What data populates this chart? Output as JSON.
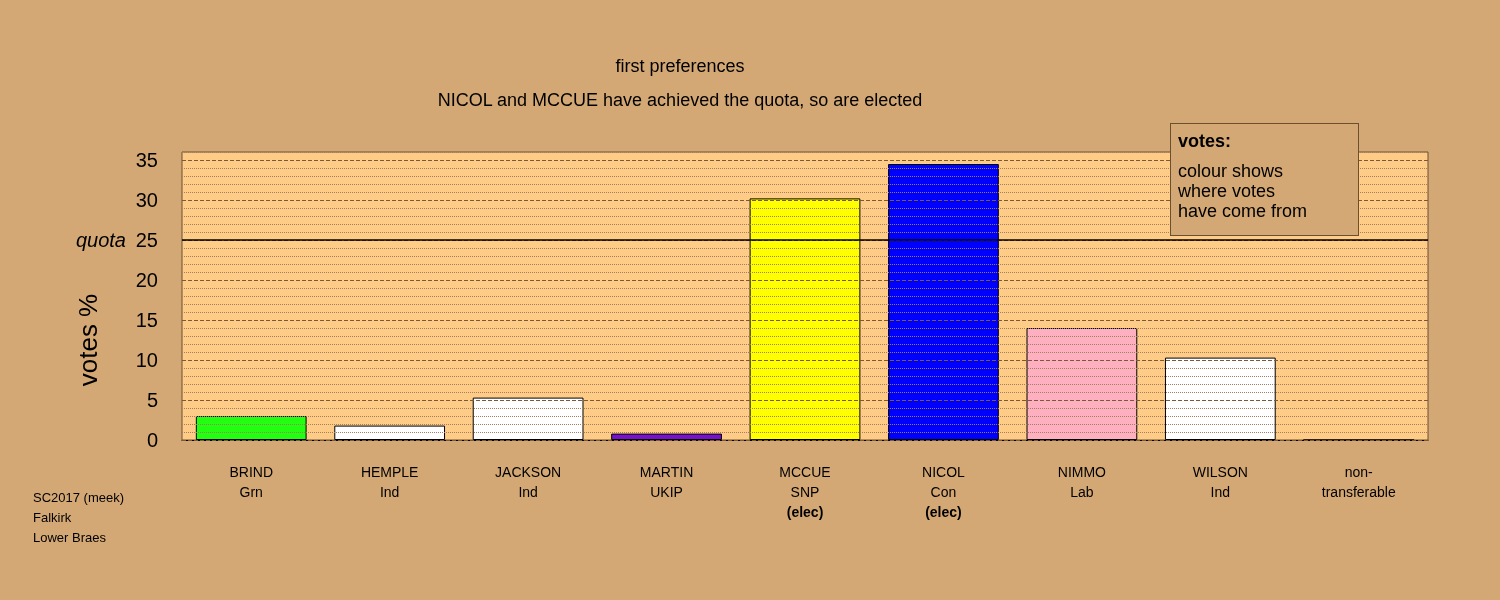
{
  "chart_data": {
    "type": "bar",
    "title": "first preferences",
    "subtitle": "NICOL and MCCUE have achieved the quota, so are elected",
    "ylabel": "votes %",
    "categories": [
      "BRIND\nGrn",
      "HEMPLE\nInd",
      "JACKSON\nInd",
      "MARTIN\nUKIP",
      "MCCUE\nSNP\n(elec)",
      "NICOL\nCon\n(elec)",
      "NIMMO\nLab",
      "WILSON\nInd",
      "non-\ntransferable"
    ],
    "values": [
      3.0,
      1.8,
      5.3,
      0.8,
      30.2,
      34.5,
      14.0,
      10.3,
      0
    ],
    "colors": [
      "#22ff11",
      "#ffffff",
      "#ffffff",
      "#7711cc",
      "#ffff00",
      "#0000ff",
      "#ffb0c0",
      "#ffffff",
      "#000000"
    ],
    "ylim": [
      0,
      36
    ],
    "yticks": [
      0,
      {
        "value": 1,
        "label": null
      },
      {
        "value": 2,
        "label": null
      },
      {
        "value": 3,
        "label": null
      },
      {
        "value": 4,
        "label": null
      },
      5,
      {
        "value": 6,
        "label": null
      },
      {
        "value": 7,
        "label": null
      },
      {
        "value": 8,
        "label": null
      },
      {
        "value": 9,
        "label": null
      },
      10,
      {
        "value": 11,
        "label": null
      },
      {
        "value": 12,
        "label": null
      },
      {
        "value": 13,
        "label": null
      },
      {
        "value": 14,
        "label": null
      },
      15,
      {
        "value": 16,
        "label": null
      },
      {
        "value": 17,
        "label": null
      },
      {
        "value": 18,
        "label": null
      },
      {
        "value": 19,
        "label": null
      },
      20,
      {
        "value": 21,
        "label": null
      },
      {
        "value": 22,
        "label": null
      },
      {
        "value": 23,
        "label": null
      },
      {
        "value": 24,
        "label": null
      },
      25,
      {
        "value": 26,
        "label": null
      },
      {
        "value": 27,
        "label": null
      },
      {
        "value": 28,
        "label": null
      },
      {
        "value": 29,
        "label": null
      },
      30,
      {
        "value": 31,
        "label": null
      },
      {
        "value": 32,
        "label": null
      },
      {
        "value": 33,
        "label": null
      },
      {
        "value": 34,
        "label": null
      },
      35,
      {
        "value": 36,
        "label": null
      }
    ],
    "grid": "y",
    "ref_lines": [
      {
        "axis": "y",
        "value": 25,
        "label": "quota",
        "color": "#000000",
        "line_style": "solid"
      }
    ],
    "annotations": [
      "votes:\ncolour shows\nwhere votes\nhave come from",
      "SC2017 (meek)\nFalkirk\nLower Braes"
    ]
  }
}
